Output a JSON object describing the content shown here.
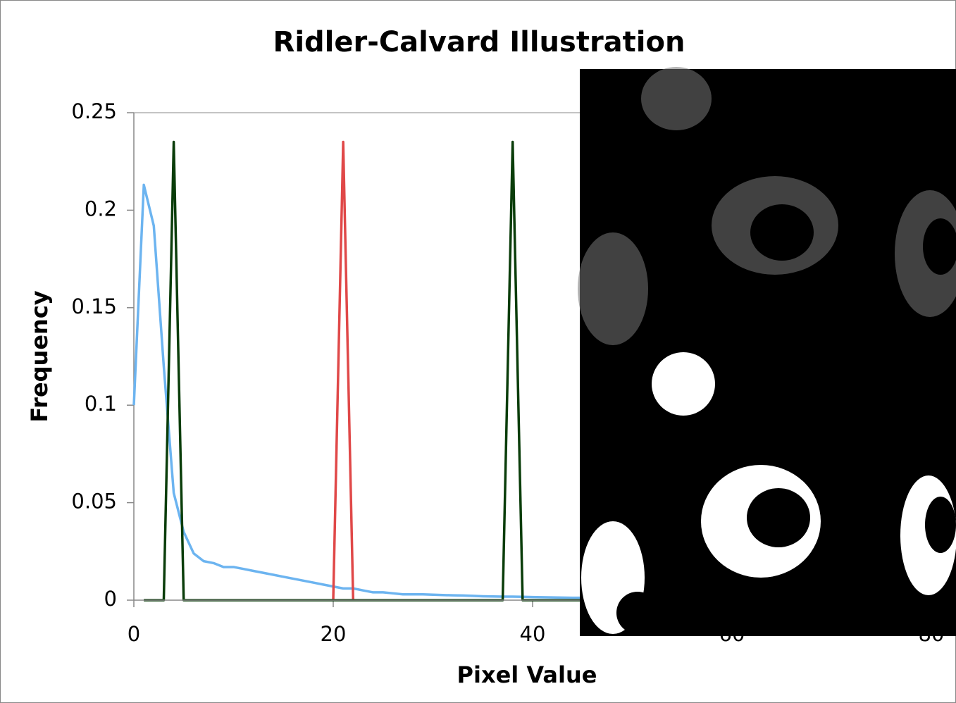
{
  "chart_data": {
    "type": "line",
    "title": "Ridler-Calvard Illustration",
    "x_label": "Pixel Value",
    "y_label": "Frequency",
    "xlim": [
      0,
      80
    ],
    "xticks": [
      0,
      20,
      40,
      60,
      80
    ],
    "ylim": [
      0,
      0.25
    ],
    "yticks": [
      0,
      0.05,
      0.1,
      0.15,
      0.2,
      0.25
    ],
    "series": [
      {
        "color": "#6cb4f0",
        "x": [
          0,
          1,
          2,
          3,
          4,
          5,
          6,
          7,
          8,
          9,
          10,
          11,
          12,
          13,
          14,
          15,
          16,
          17,
          18,
          19,
          20,
          21,
          22,
          23,
          24,
          25,
          26,
          27,
          28,
          29,
          30,
          31,
          32,
          33,
          34,
          35,
          36,
          37,
          38,
          39,
          40,
          41,
          42,
          43,
          44,
          45,
          46
        ],
        "values": [
          0.1,
          0.213,
          0.192,
          0.12,
          0.055,
          0.035,
          0.024,
          0.02,
          0.019,
          0.017,
          0.017,
          0.016,
          0.015,
          0.014,
          0.013,
          0.012,
          0.011,
          0.01,
          0.009,
          0.008,
          0.007,
          0.006,
          0.006,
          0.005,
          0.004,
          0.004,
          0.0035,
          0.003,
          0.003,
          0.003,
          0.0028,
          0.0026,
          0.0025,
          0.0024,
          0.0022,
          0.002,
          0.0019,
          0.0018,
          0.0018,
          0.0017,
          0.0016,
          0.0015,
          0.0014,
          0.0013,
          0.0012,
          0.0012,
          0.0011
        ]
      },
      {
        "color": "#e04848",
        "x": [
          20,
          21,
          22
        ],
        "values": [
          0,
          0.235,
          0
        ]
      },
      {
        "color": "#0a3d0a",
        "x": [
          1,
          3,
          4,
          5,
          37,
          38,
          39,
          46
        ],
        "values": [
          0,
          0,
          0.235,
          0,
          0,
          0.235,
          0,
          0
        ]
      }
    ]
  }
}
